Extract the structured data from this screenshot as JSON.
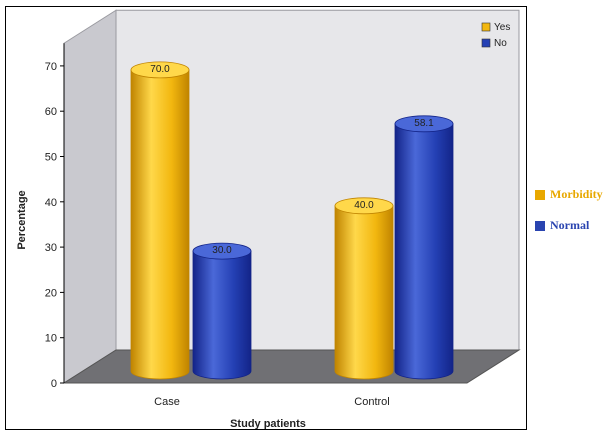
{
  "colors": {
    "yes": "#f2b70f",
    "yes_dark": "#c08400",
    "yes_light": "#ffd84a",
    "no": "#2440b4",
    "no_dark": "#132488",
    "no_light": "#4a68d8",
    "back_wall": "#e7e7ea",
    "side_wall": "#c9c9cf",
    "floor": "#707074",
    "morbidity_text": "#e8a800",
    "normal_text": "#2a44b0"
  },
  "chart_data": {
    "type": "bar",
    "categories": [
      "Case",
      "Control"
    ],
    "series": [
      {
        "name": "Yes",
        "values": [
          70.0,
          40.0
        ]
      },
      {
        "name": "No",
        "values": [
          30.0,
          58.1
        ]
      }
    ],
    "value_labels": [
      [
        "70.0",
        "40.0"
      ],
      [
        "30.0",
        "58.1"
      ]
    ],
    "xlabel": "Study patients",
    "ylabel": "Percentage",
    "yticks": [
      "0",
      "10",
      "20",
      "30",
      "40",
      "50",
      "60",
      "70"
    ],
    "ylim": [
      0,
      75
    ],
    "grid": false,
    "legend_position": "top-right"
  },
  "legend_outside": [
    {
      "label": "Morbidity",
      "color": "#e8a800"
    },
    {
      "label": "Normal",
      "color": "#2a44b0"
    }
  ]
}
